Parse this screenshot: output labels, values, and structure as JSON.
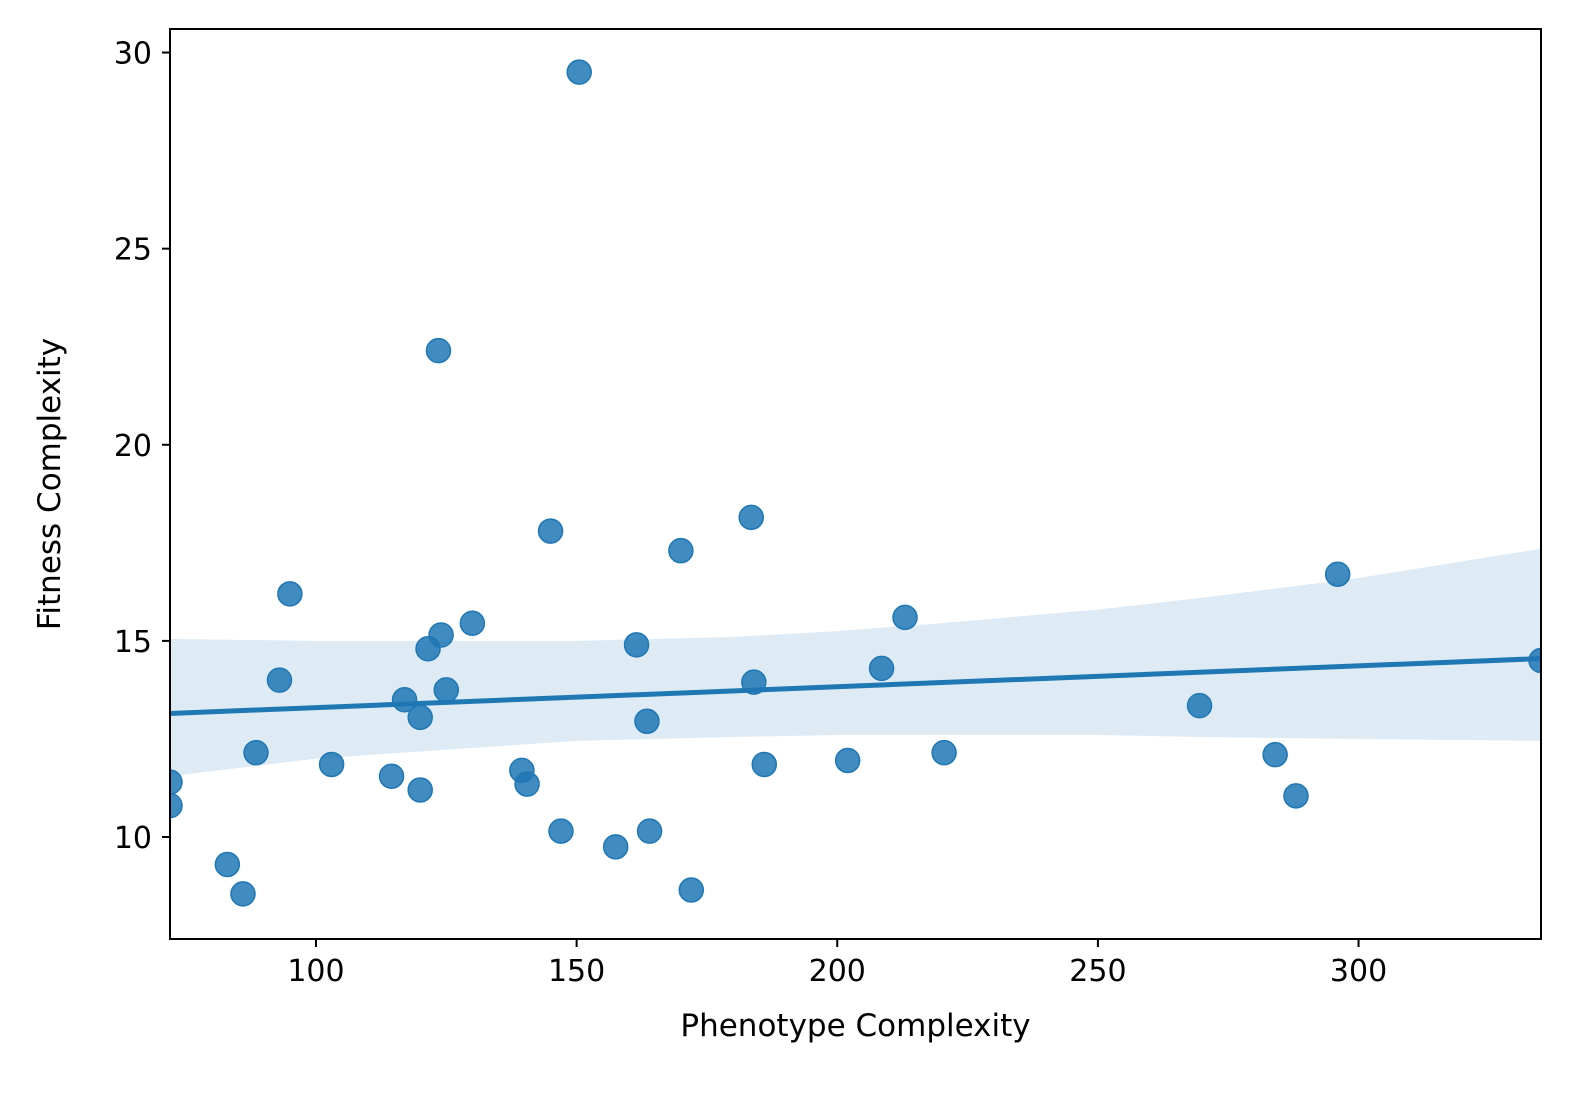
{
  "chart_data": {
    "type": "scatter",
    "xlabel": "Phenotype Complexity",
    "ylabel": "Fitness Complexity",
    "xlim": [
      72,
      335
    ],
    "ylim": [
      7.4,
      30.6
    ],
    "xticks": [
      100,
      150,
      200,
      250,
      300
    ],
    "yticks": [
      10,
      15,
      20,
      25,
      30
    ],
    "grid": false,
    "colors": {
      "points": "#1f77b4",
      "line": "#1f77b4",
      "ci_band": "#1f77b4"
    },
    "points": [
      {
        "x": 72,
        "y": 11.4
      },
      {
        "x": 72,
        "y": 10.8
      },
      {
        "x": 83,
        "y": 9.3
      },
      {
        "x": 86,
        "y": 8.55
      },
      {
        "x": 88.5,
        "y": 12.15
      },
      {
        "x": 93,
        "y": 14.0
      },
      {
        "x": 95,
        "y": 16.2
      },
      {
        "x": 103,
        "y": 11.85
      },
      {
        "x": 114.5,
        "y": 11.55
      },
      {
        "x": 117,
        "y": 13.5
      },
      {
        "x": 120,
        "y": 13.05
      },
      {
        "x": 120,
        "y": 11.2
      },
      {
        "x": 121.5,
        "y": 14.8
      },
      {
        "x": 123.5,
        "y": 22.4
      },
      {
        "x": 124,
        "y": 15.15
      },
      {
        "x": 125,
        "y": 13.75
      },
      {
        "x": 130,
        "y": 15.45
      },
      {
        "x": 139.5,
        "y": 11.7
      },
      {
        "x": 140.5,
        "y": 11.35
      },
      {
        "x": 145,
        "y": 17.8
      },
      {
        "x": 147,
        "y": 10.15
      },
      {
        "x": 150.5,
        "y": 29.5
      },
      {
        "x": 157.5,
        "y": 9.75
      },
      {
        "x": 161.5,
        "y": 14.9
      },
      {
        "x": 163.5,
        "y": 12.95
      },
      {
        "x": 164,
        "y": 10.15
      },
      {
        "x": 170,
        "y": 17.3
      },
      {
        "x": 172,
        "y": 8.65
      },
      {
        "x": 183.5,
        "y": 18.15
      },
      {
        "x": 184,
        "y": 13.95
      },
      {
        "x": 186,
        "y": 11.85
      },
      {
        "x": 202,
        "y": 11.95
      },
      {
        "x": 208.5,
        "y": 14.3
      },
      {
        "x": 213,
        "y": 15.6
      },
      {
        "x": 220.5,
        "y": 12.15
      },
      {
        "x": 269.5,
        "y": 13.35
      },
      {
        "x": 284,
        "y": 12.1
      },
      {
        "x": 288,
        "y": 11.05
      },
      {
        "x": 296,
        "y": 16.7
      },
      {
        "x": 335,
        "y": 14.5
      }
    ],
    "regression": {
      "x": [
        72,
        335
      ],
      "y": [
        13.15,
        14.55
      ]
    },
    "ci_band": {
      "x": [
        72,
        100,
        150,
        180,
        200,
        220,
        250,
        270,
        300,
        335
      ],
      "upper": [
        15.05,
        15.0,
        15.0,
        15.1,
        15.25,
        15.45,
        15.8,
        16.1,
        16.6,
        17.35
      ],
      "lower": [
        11.55,
        12.0,
        12.45,
        12.55,
        12.6,
        12.6,
        12.6,
        12.55,
        12.5,
        12.45
      ]
    }
  }
}
